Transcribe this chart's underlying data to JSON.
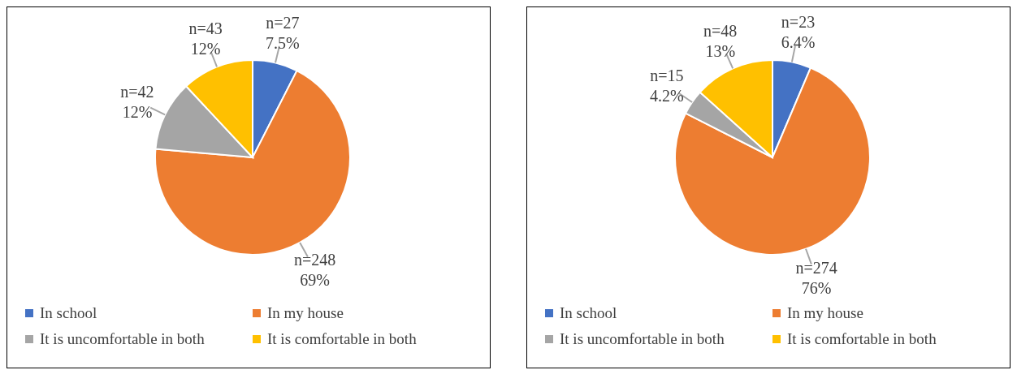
{
  "chart_data": [
    {
      "type": "pie",
      "categories": [
        "In school",
        "In my house",
        "It is uncomfortable in both",
        "It is comfortable in both"
      ],
      "values": [
        27,
        248,
        42,
        43
      ],
      "colors": [
        "#4472c4",
        "#ed7d31",
        "#a5a5a5",
        "#ffc000"
      ],
      "value_labels": [
        "n=27\n7.5%",
        "n=248\n69%",
        "n=42\n12%",
        "n=43\n12%"
      ],
      "legend": "bottom"
    },
    {
      "type": "pie",
      "categories": [
        "In school",
        "In my house",
        "It is uncomfortable in both",
        "It is comfortable in both"
      ],
      "values": [
        23,
        274,
        15,
        48
      ],
      "colors": [
        "#4472c4",
        "#ed7d31",
        "#a5a5a5",
        "#ffc000"
      ],
      "value_labels": [
        "n=23\n6.4%",
        "n=274\n76%",
        "n=15\n4.2%",
        "n=48\n13%"
      ],
      "legend": "bottom"
    }
  ]
}
